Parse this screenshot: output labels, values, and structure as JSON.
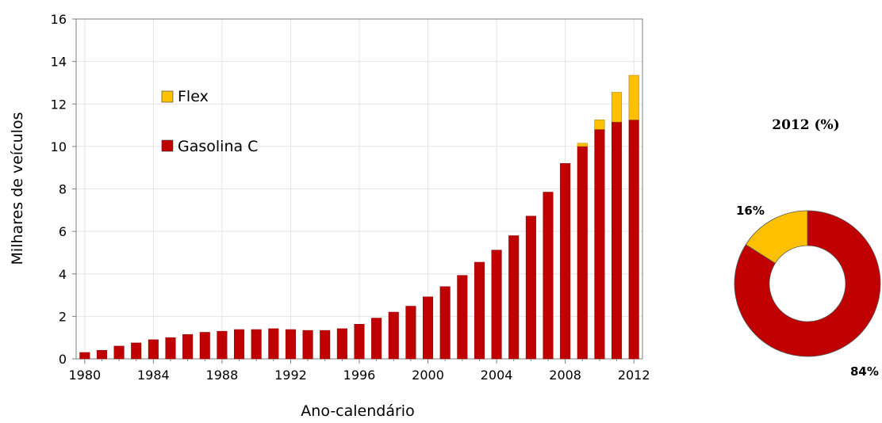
{
  "chart_data": [
    {
      "type": "bar",
      "stacked": true,
      "xlabel": "Ano-calendário",
      "ylabel": "Milhares de veículos",
      "ylim": [
        0,
        16
      ],
      "yticks": [
        0,
        2,
        4,
        6,
        8,
        10,
        12,
        14,
        16
      ],
      "grid": true,
      "legend_placement": "top-left",
      "xtick_labels": [
        "1980",
        "1984",
        "1988",
        "1992",
        "1996",
        "2000",
        "2004",
        "2008",
        "2012"
      ],
      "categories": [
        1980,
        1981,
        1982,
        1983,
        1984,
        1985,
        1986,
        1987,
        1988,
        1989,
        1990,
        1991,
        1992,
        1993,
        1994,
        1995,
        1996,
        1997,
        1998,
        1999,
        2000,
        2001,
        2002,
        2003,
        2004,
        2005,
        2006,
        2007,
        2008,
        2009,
        2010,
        2011,
        2012
      ],
      "series": [
        {
          "name": "Gasolina C",
          "color": "#C00000",
          "values": [
            0.3,
            0.4,
            0.6,
            0.75,
            0.9,
            1.0,
            1.15,
            1.25,
            1.3,
            1.38,
            1.38,
            1.42,
            1.38,
            1.34,
            1.34,
            1.42,
            1.63,
            1.92,
            2.2,
            2.48,
            2.92,
            3.4,
            3.93,
            4.55,
            5.12,
            5.8,
            6.72,
            7.85,
            9.2,
            10.0,
            10.8,
            11.15,
            11.25
          ]
        },
        {
          "name": "Flex",
          "color": "#FFC000",
          "values": [
            0,
            0,
            0,
            0,
            0,
            0,
            0,
            0,
            0,
            0,
            0,
            0,
            0,
            0,
            0,
            0,
            0,
            0,
            0,
            0,
            0,
            0,
            0,
            0,
            0,
            0,
            0,
            0,
            0,
            0.15,
            0.45,
            1.4,
            2.1
          ]
        }
      ]
    },
    {
      "type": "pie",
      "donut": true,
      "title": "2012 (%)",
      "slices": [
        {
          "name": "Gasolina C",
          "value": 84,
          "label": "84%",
          "color": "#C00000"
        },
        {
          "name": "Flex",
          "value": 16,
          "label": "16%",
          "color": "#FFC000"
        }
      ]
    }
  ]
}
